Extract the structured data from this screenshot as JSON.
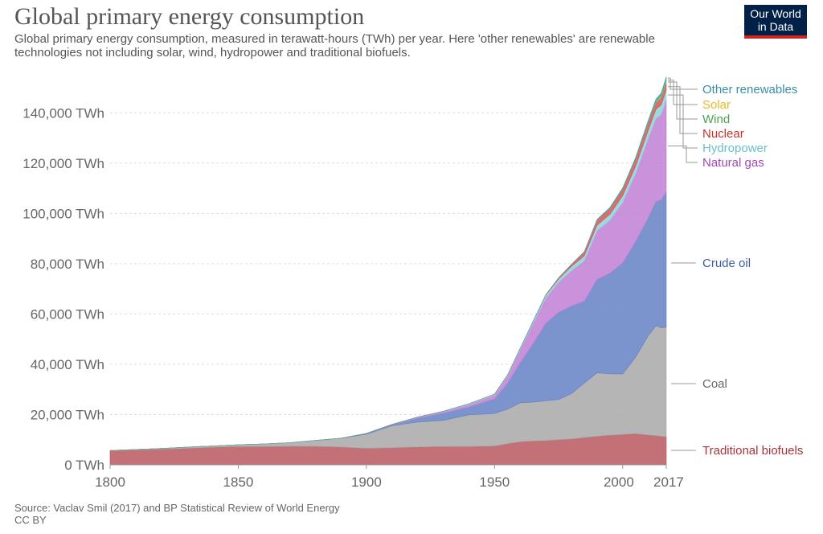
{
  "title": "Global primary energy consumption",
  "subtitle": "Global primary energy consumption, measured in terawatt-hours (TWh) per year. Here 'other renewables' are renewable technologies not including solar, wind, hydropower and traditional biofuels.",
  "logo": {
    "line1": "Our World",
    "line2": "in Data"
  },
  "footer": {
    "source": "Source: Vaclav Smil (2017) and BP Statistical Review of World Energy",
    "license": "CC BY"
  },
  "colors": {
    "accent": "#ce261e",
    "brand": "#002147"
  },
  "chart_data": {
    "type": "area",
    "stacked": true,
    "title": "Global primary energy consumption",
    "xlabel": "",
    "ylabel": "TWh",
    "xlim": [
      1800,
      2017
    ],
    "ylim": [
      0,
      150000
    ],
    "x": [
      1800,
      1810,
      1820,
      1830,
      1840,
      1850,
      1860,
      1870,
      1880,
      1890,
      1900,
      1910,
      1920,
      1930,
      1940,
      1950,
      1955,
      1960,
      1965,
      1970,
      1975,
      1980,
      1985,
      1990,
      1995,
      2000,
      2005,
      2010,
      2013,
      2015,
      2017
    ],
    "x_ticks": [
      1800,
      1850,
      1900,
      1950,
      2000,
      2017
    ],
    "x_tick_labels": [
      "1800",
      "1850",
      "1900",
      "1950",
      "2000",
      "2017"
    ],
    "y_ticks": [
      0,
      20000,
      40000,
      60000,
      80000,
      100000,
      120000,
      140000
    ],
    "y_tick_labels": [
      "0 TWh",
      "20,000 TWh",
      "40,000 TWh",
      "60,000 TWh",
      "80,000 TWh",
      "100,000 TWh",
      "120,000 TWh",
      "140,000 TWh"
    ],
    "series": [
      {
        "name": "Traditional biofuels",
        "color": "#b8575f",
        "values": [
          5600,
          5900,
          6200,
          6600,
          7000,
          7300,
          7300,
          7400,
          7400,
          7100,
          6600,
          6800,
          7100,
          7300,
          7300,
          7500,
          8400,
          9200,
          9500,
          9700,
          10000,
          10300,
          10900,
          11400,
          11800,
          12100,
          12400,
          11900,
          11600,
          11400,
          11100
        ]
      },
      {
        "name": "Coal",
        "color": "#a8a8a8",
        "values": [
          100,
          200,
          300,
          400,
          500,
          700,
          1000,
          1400,
          2300,
          3500,
          5600,
          8700,
          9900,
          10400,
          12600,
          12900,
          13700,
          15500,
          15400,
          15800,
          16000,
          18000,
          21600,
          25200,
          24400,
          24000,
          30400,
          39500,
          43700,
          43100,
          43600
        ]
      },
      {
        "name": "Crude oil",
        "color": "#6581c4",
        "values": [
          0,
          0,
          0,
          0,
          0,
          0,
          0,
          0,
          0,
          0,
          200,
          400,
          1500,
          2800,
          3100,
          5800,
          10200,
          15900,
          23200,
          30800,
          34600,
          34900,
          32600,
          37100,
          40000,
          44200,
          45900,
          46900,
          49400,
          50800,
          53800
        ]
      },
      {
        "name": "Natural gas",
        "color": "#c07fd5",
        "values": [
          0,
          0,
          0,
          0,
          0,
          0,
          0,
          0,
          0,
          0,
          100,
          200,
          400,
          600,
          1000,
          1500,
          2800,
          5000,
          8000,
          10000,
          12000,
          14000,
          16000,
          19400,
          21000,
          24000,
          27000,
          31500,
          33000,
          34000,
          36600
        ]
      },
      {
        "name": "Hydropower",
        "color": "#8ed2da",
        "values": [
          0,
          0,
          0,
          0,
          0,
          0,
          0,
          0,
          0,
          0,
          0,
          0,
          100,
          200,
          300,
          400,
          500,
          700,
          900,
          1100,
          1300,
          1700,
          2000,
          2200,
          2400,
          2700,
          2900,
          3300,
          3700,
          3800,
          4000
        ]
      },
      {
        "name": "Nuclear",
        "color": "#d9534f",
        "values": [
          0,
          0,
          0,
          0,
          0,
          0,
          0,
          0,
          0,
          0,
          0,
          0,
          0,
          0,
          0,
          0,
          0,
          0,
          50,
          200,
          500,
          800,
          1500,
          2000,
          2300,
          2600,
          2800,
          2800,
          2500,
          2600,
          2600
        ]
      },
      {
        "name": "Wind",
        "color": "#6bb56b",
        "values": [
          0,
          0,
          0,
          0,
          0,
          0,
          0,
          0,
          0,
          0,
          0,
          0,
          0,
          0,
          0,
          0,
          0,
          0,
          0,
          0,
          0,
          0,
          0,
          0,
          0,
          50,
          100,
          350,
          600,
          850,
          1100
        ]
      },
      {
        "name": "Solar",
        "color": "#f1c649",
        "values": [
          0,
          0,
          0,
          0,
          0,
          0,
          0,
          0,
          0,
          0,
          0,
          0,
          0,
          0,
          0,
          0,
          0,
          0,
          0,
          0,
          0,
          0,
          0,
          0,
          0,
          0,
          10,
          35,
          130,
          200,
          440
        ]
      },
      {
        "name": "Other renewables",
        "color": "#4a9eb0",
        "values": [
          0,
          0,
          0,
          0,
          0,
          0,
          0,
          0,
          0,
          0,
          0,
          0,
          0,
          0,
          0,
          0,
          0,
          0,
          0,
          0,
          0,
          50,
          200,
          300,
          400,
          500,
          600,
          800,
          900,
          1000,
          1100
        ]
      }
    ]
  }
}
